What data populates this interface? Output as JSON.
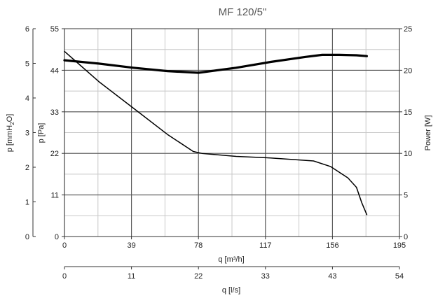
{
  "chart_data": {
    "type": "line",
    "title": "MF 120/5\"",
    "x_primary": {
      "label": "q [m³/h]",
      "range": [
        0,
        195
      ],
      "ticks": [
        0,
        39,
        78,
        117,
        156,
        195
      ]
    },
    "x_secondary": {
      "label": "q [l/s]",
      "range": [
        0,
        54
      ],
      "ticks": [
        0,
        11,
        22,
        33,
        43,
        54
      ]
    },
    "y_primary": {
      "label": "p [Pa]",
      "range": [
        0,
        55
      ],
      "ticks": [
        0,
        11,
        22,
        33,
        44,
        55
      ]
    },
    "y_secondary_left": {
      "label": "p [mmH",
      "label_sub": "2",
      "label_end": "O]",
      "range": [
        0,
        6
      ],
      "ticks": [
        0,
        1,
        2,
        3,
        4,
        5,
        6
      ]
    },
    "y_right": {
      "label": "Power [W]",
      "range": [
        0,
        25
      ],
      "ticks": [
        0,
        5,
        10,
        15,
        20,
        25
      ]
    },
    "grid": true,
    "series": [
      {
        "axis": "pressure",
        "x": [
          0,
          10,
          20,
          40,
          60,
          75,
          80,
          100,
          120,
          145,
          155,
          165,
          170,
          173,
          176
        ],
        "y": [
          49,
          45,
          41,
          34,
          27,
          22.5,
          22,
          21.2,
          20.8,
          20,
          18.5,
          15.5,
          13,
          9,
          5.8
        ]
      },
      {
        "axis": "power",
        "x": [
          0,
          20,
          40,
          60,
          78,
          100,
          120,
          140,
          150,
          160,
          170,
          176
        ],
        "y": [
          21.2,
          20.8,
          20.3,
          19.9,
          19.7,
          20.3,
          21.0,
          21.6,
          21.85,
          21.85,
          21.8,
          21.7
        ]
      }
    ]
  }
}
